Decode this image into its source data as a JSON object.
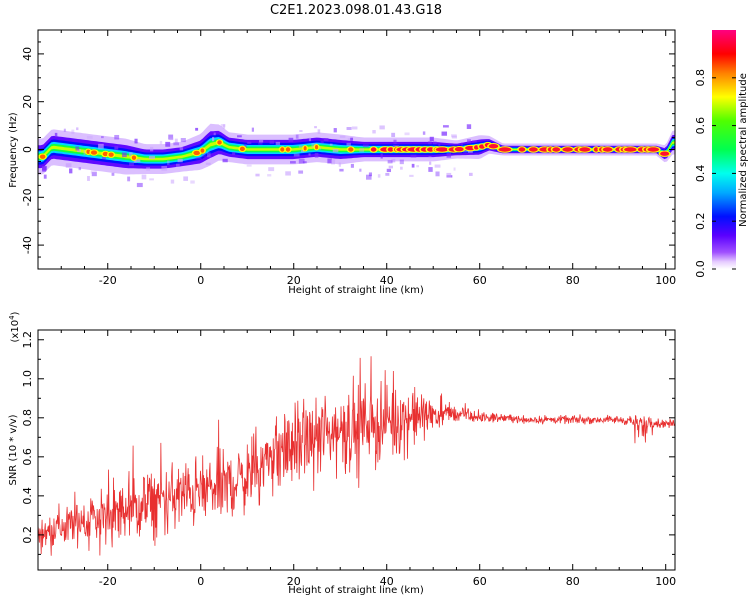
{
  "title": "C2E1.2023.098.01.43.G18",
  "chart_data": [
    {
      "type": "heatmap",
      "name": "spectrogram",
      "xlabel": "Height of straight line (km)",
      "ylabel": "Frequency (Hz)",
      "xlim": [
        -35,
        102
      ],
      "ylim": [
        -50,
        50
      ],
      "xticks": [
        "-20",
        "0",
        "20",
        "40",
        "60",
        "80",
        "100"
      ],
      "xtick_values": [
        -20,
        0,
        20,
        40,
        60,
        80,
        100
      ],
      "yticks": [
        "-40",
        "-20",
        "0",
        "20",
        "40"
      ],
      "ytick_values": [
        -40,
        -20,
        0,
        20,
        40
      ],
      "ridge": {
        "x": [
          -34,
          -32,
          -28,
          -24,
          -20,
          -16,
          -12,
          -8,
          -4,
          0,
          2,
          4,
          6,
          10,
          15,
          20,
          25,
          30,
          35,
          40,
          45,
          50,
          55,
          60,
          62,
          65,
          70,
          80,
          90,
          98,
          100,
          101.5
        ],
        "y": [
          -3,
          1,
          0,
          -1,
          -2,
          -3,
          -4,
          -4,
          -3,
          -1,
          2,
          3,
          1,
          0,
          0,
          0,
          1,
          0,
          0,
          0,
          0,
          0,
          0,
          1,
          2,
          0,
          0,
          0,
          0,
          0,
          -2,
          3
        ],
        "halfwidth": [
          6,
          6,
          6,
          6,
          6,
          6,
          5,
          5,
          5,
          6,
          7,
          6,
          5,
          5,
          5,
          5,
          5,
          5,
          4,
          4,
          4,
          4,
          3,
          4,
          3,
          2,
          2,
          2,
          2,
          2,
          3,
          4
        ]
      },
      "colorbar": {
        "label": "Normalized spectral amplitude",
        "range": [
          0,
          1
        ],
        "ticks": [
          "0.0",
          "0.2",
          "0.4",
          "0.6",
          "0.8"
        ],
        "tick_values": [
          0,
          0.2,
          0.4,
          0.6,
          0.8
        ]
      }
    },
    {
      "type": "line",
      "name": "snr",
      "xlabel": "Height of straight line (km)",
      "ylabel": "SNR (10 * v/v)",
      "scale_label": "(x10",
      "scale_exp": "4",
      "scale_close": ")",
      "xlim": [
        -35,
        102
      ],
      "ylim": [
        0.02,
        1.25
      ],
      "xticks": [
        "-20",
        "0",
        "20",
        "40",
        "60",
        "80",
        "100"
      ],
      "xtick_values": [
        -20,
        0,
        20,
        40,
        60,
        80,
        100
      ],
      "yticks": [
        "0.2",
        "0.4",
        "0.6",
        "0.8",
        "1.0",
        "1.2"
      ],
      "ytick_values": [
        0.2,
        0.4,
        0.6,
        0.8,
        1.0,
        1.2
      ],
      "color": "#e83030",
      "series": [
        {
          "name": "SNR",
          "x": [
            -35,
            -30,
            -25,
            -20,
            -15,
            -10,
            -5,
            0,
            5,
            10,
            15,
            20,
            25,
            30,
            35,
            40,
            45,
            50,
            55,
            60,
            65,
            70,
            80,
            90,
            95,
            100,
            102
          ],
          "mean": [
            0.2,
            0.24,
            0.28,
            0.3,
            0.33,
            0.36,
            0.4,
            0.42,
            0.45,
            0.5,
            0.6,
            0.66,
            0.7,
            0.74,
            0.77,
            0.78,
            0.8,
            0.82,
            0.82,
            0.8,
            0.8,
            0.79,
            0.79,
            0.79,
            0.78,
            0.77,
            0.77
          ],
          "spread": [
            0.12,
            0.16,
            0.22,
            0.24,
            0.25,
            0.26,
            0.26,
            0.26,
            0.26,
            0.27,
            0.28,
            0.3,
            0.3,
            0.32,
            0.32,
            0.3,
            0.24,
            0.12,
            0.06,
            0.04,
            0.03,
            0.03,
            0.03,
            0.03,
            0.05,
            0.03,
            0.03
          ]
        }
      ]
    }
  ],
  "colors": {
    "trace": "#e83030",
    "frame": "#000000"
  }
}
